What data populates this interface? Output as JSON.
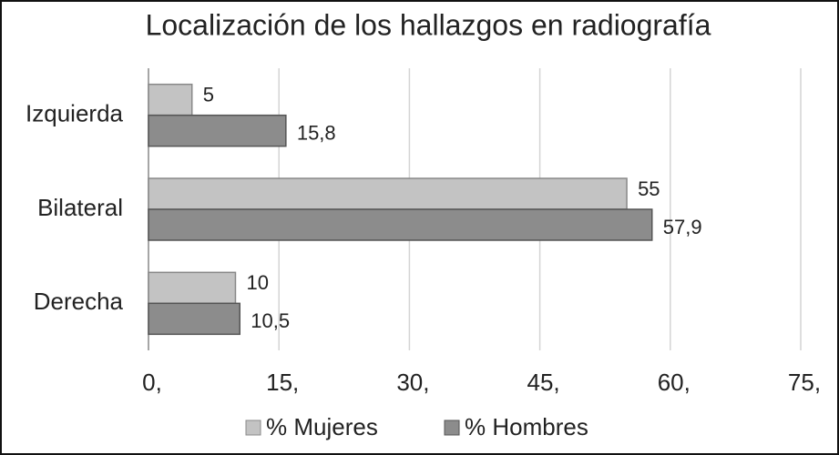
{
  "chart_data": {
    "type": "bar",
    "orientation": "horizontal",
    "title": "Localización de los hallazgos en radiografía",
    "categories": [
      "Izquierda",
      "Bilateral",
      "Derecha"
    ],
    "series": [
      {
        "name": "% Mujeres",
        "color": "#c3c3c3",
        "values": [
          5,
          55,
          10
        ]
      },
      {
        "name": "% Hombres",
        "color": "#8c8c8c",
        "values": [
          15.8,
          57.9,
          10.5
        ],
        "value_labels": [
          "15,8",
          "57,9",
          "10,5"
        ]
      }
    ],
    "xlim": [
      0,
      75
    ],
    "xticks": [
      {
        "value": 0,
        "label": "0,"
      },
      {
        "value": 15,
        "label": "15,"
      },
      {
        "value": 30,
        "label": "30,"
      },
      {
        "value": 45,
        "label": "45,"
      },
      {
        "value": 60,
        "label": "60,"
      },
      {
        "value": 75,
        "label": "75,"
      }
    ],
    "grid": true,
    "legend": "bottom"
  }
}
